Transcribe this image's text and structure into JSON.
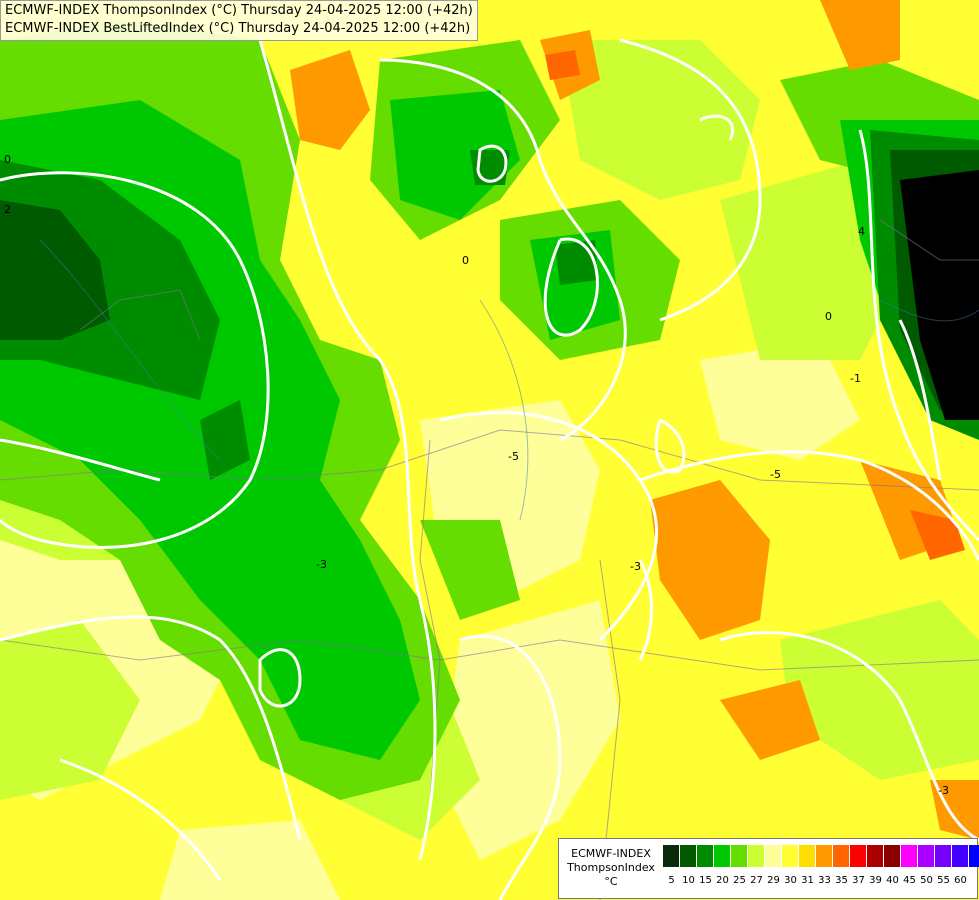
{
  "header": {
    "line1": "ECMWF-INDEX ThompsonIndex (°C) Thursday 24-04-2025 12:00 (+42h)",
    "line2": "ECMWF-INDEX BestLiftedIndex (°C) Thursday 24-04-2025 12:00 (+42h)"
  },
  "legend": {
    "model": "ECMWF-INDEX",
    "parameter": "ThompsonIndex",
    "unit": "°C",
    "colors": [
      "#000000",
      "#000000",
      "#000000",
      "#0a2a0a",
      "#005a00",
      "#008c00",
      "#00c800",
      "#66dd00",
      "#ccff33",
      "#ffff99",
      "#ffff33",
      "#ffdd00",
      "#ff9900",
      "#ff6600",
      "#ff0000",
      "#aa0000",
      "#880000",
      "#ff00ff",
      "#aa00ff",
      "#7700ff",
      "#4400ff",
      "#0000ff"
    ],
    "ticks": [
      "5",
      "10",
      "15",
      "20",
      "25",
      "27",
      "29",
      "30",
      "31",
      "33",
      "35",
      "37",
      "39",
      "40",
      "45",
      "50",
      "55",
      "60"
    ]
  },
  "contour_labels": [
    "0",
    "2",
    "4",
    "-5",
    "-3",
    "-1",
    "-3",
    "0",
    "0",
    "-5",
    "-3"
  ]
}
